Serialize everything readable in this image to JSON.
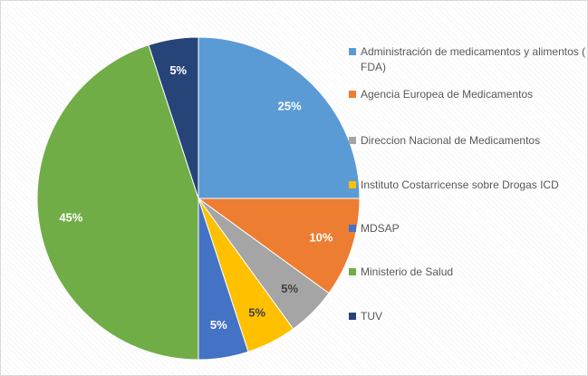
{
  "chart_data": {
    "type": "pie",
    "categories": [
      "Administración de medicamentos y alimentos ( FDA)",
      "Agencia Europea de Medicamentos",
      "Direccion Nacional de Medicamentos",
      "Instituto Costarricense sobre Drogas ICD",
      "MDSAP",
      "Ministerio de Salud",
      "TUV"
    ],
    "values": [
      25,
      10,
      5,
      5,
      5,
      45,
      5
    ],
    "value_labels": [
      "25%",
      "10%",
      "5%",
      "5%",
      "5%",
      "45%",
      "5%"
    ],
    "colors": [
      "#5b9bd5",
      "#ed7d31",
      "#a5a5a5",
      "#ffc000",
      "#4472c4",
      "#70ad47",
      "#264478"
    ],
    "legend": "right"
  }
}
